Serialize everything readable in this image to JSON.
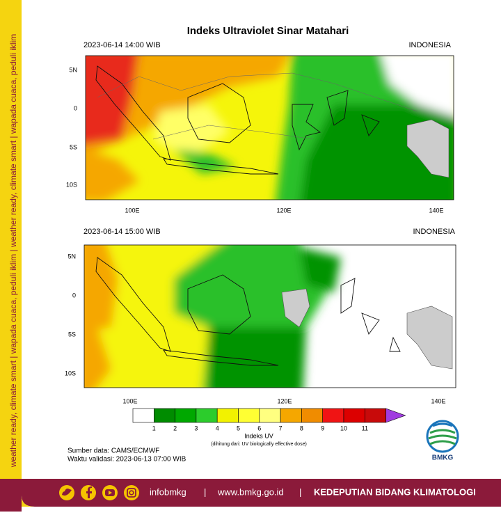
{
  "side_text": "weather ready, climate smart  |  wapada cuaca, peduli iklim  |  weather ready, climate smart  |  wapada cuaca, peduli iklim",
  "title": "Indeks Ultraviolet Sinar Matahari",
  "panels": [
    {
      "timestamp": "2023-06-14  14:00 WIB",
      "region": "INDONESIA",
      "lat_labels": [
        "5N",
        "0",
        "5S",
        "10S"
      ],
      "lon_labels": [
        "100E",
        "120E",
        "140E"
      ]
    },
    {
      "timestamp": "2023-06-14  15:00 WIB",
      "region": "INDONESIA",
      "lat_labels": [
        "5N",
        "0",
        "5S",
        "10S"
      ],
      "lon_labels": [
        "100E",
        "120E",
        "140E"
      ]
    }
  ],
  "colorbar": {
    "colors": [
      "#ffffff",
      "#008c00",
      "#00a800",
      "#2ccc2c",
      "#f2f200",
      "#ffff33",
      "#ffff80",
      "#f5a700",
      "#f08c00",
      "#f01414",
      "#dc0000",
      "#c80a0a"
    ],
    "arrow_color": "#a03ce0",
    "labels": [
      1,
      2,
      3,
      4,
      5,
      6,
      7,
      8,
      9,
      10,
      11
    ],
    "title": "Indeks UV",
    "note": "(dihitung dari: UV biologically effective dose)"
  },
  "footer": {
    "source": "Sumber data: CAMS/ECMWF",
    "valid_time": "Waktu validasi: 2023-06-13 07:00 WIB"
  },
  "logo": "BMKG",
  "banner": {
    "social": "infobmkg",
    "separator": "|",
    "website": "www.bmkg.go.id",
    "department": "KEDEPUTIAN BIDANG KLIMATOLOGI"
  }
}
